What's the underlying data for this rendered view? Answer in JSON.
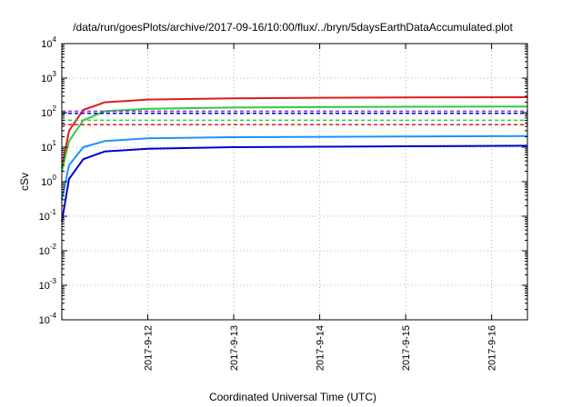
{
  "chart_data": {
    "type": "line",
    "title": "/data/run/goesPlots/archive/2017-09-16/10:00/flux/../bryn/5daysEarthDataAccumulated.plot",
    "xlabel": "Coordinated Universal Time (UTC)",
    "ylabel": "cSv",
    "y_scale": "log",
    "ylim": [
      0.0001,
      10000
    ],
    "xlim": [
      "2017-09-11 00:00",
      "2017-09-16 10:00"
    ],
    "x_ticks": [
      "2017-9-12",
      "2017-9-13",
      "2017-9-14",
      "2017-9-15",
      "2017-9-16"
    ],
    "y_ticks": [
      {
        "base": "10",
        "exp": "-4"
      },
      {
        "base": "10",
        "exp": "-3"
      },
      {
        "base": "10",
        "exp": "-2"
      },
      {
        "base": "10",
        "exp": "-1"
      },
      {
        "base": "10",
        "exp": "0"
      },
      {
        "base": "10",
        "exp": "1"
      },
      {
        "base": "10",
        "exp": "2"
      },
      {
        "base": "10",
        "exp": "3"
      },
      {
        "base": "10",
        "exp": "4"
      }
    ],
    "grid": true,
    "series": [
      {
        "color": "#e31a1c",
        "style": "solid",
        "x": [
          "2017-09-11 00:00",
          "2017-09-11 02:00",
          "2017-09-11 06:00",
          "2017-09-11 12:00",
          "2017-09-12 00:00",
          "2017-09-13 00:00",
          "2017-09-14 00:00",
          "2017-09-15 00:00",
          "2017-09-16 10:00"
        ],
        "values": [
          2.5,
          30,
          120,
          200,
          240,
          260,
          270,
          275,
          280
        ]
      },
      {
        "color": "#2ecc40",
        "style": "solid",
        "x": [
          "2017-09-11 00:00",
          "2017-09-11 02:00",
          "2017-09-11 06:00",
          "2017-09-11 12:00",
          "2017-09-12 00:00",
          "2017-09-13 00:00",
          "2017-09-14 00:00",
          "2017-09-15 00:00",
          "2017-09-16 10:00"
        ],
        "values": [
          2,
          15,
          60,
          110,
          130,
          140,
          145,
          148,
          150
        ]
      },
      {
        "color": "#1e90ff",
        "style": "solid",
        "x": [
          "2017-09-11 00:00",
          "2017-09-11 02:00",
          "2017-09-11 06:00",
          "2017-09-11 12:00",
          "2017-09-12 00:00",
          "2017-09-13 00:00",
          "2017-09-14 00:00",
          "2017-09-15 00:00",
          "2017-09-16 10:00"
        ],
        "values": [
          0.3,
          3,
          10,
          15,
          18,
          19.5,
          20,
          20.5,
          21
        ]
      },
      {
        "color": "#0000cd",
        "style": "solid",
        "x": [
          "2017-09-11 00:00",
          "2017-09-11 02:00",
          "2017-09-11 06:00",
          "2017-09-11 12:00",
          "2017-09-12 00:00",
          "2017-09-13 00:00",
          "2017-09-14 00:00",
          "2017-09-15 00:00",
          "2017-09-16 10:00"
        ],
        "values": [
          0.07,
          1.2,
          4.5,
          7.5,
          9,
          10,
          10.3,
          10.6,
          11
        ]
      },
      {
        "color": "#8a2be2",
        "style": "dashed",
        "x": [
          "2017-09-11 00:00",
          "2017-09-16 10:00"
        ],
        "values": [
          110,
          110
        ]
      },
      {
        "color": "#0000cd",
        "style": "dashed",
        "x": [
          "2017-09-11 00:00",
          "2017-09-16 10:00"
        ],
        "values": [
          95,
          95
        ]
      },
      {
        "color": "#2ecc40",
        "style": "dashed",
        "x": [
          "2017-09-11 00:00",
          "2017-09-16 10:00"
        ],
        "values": [
          60,
          60
        ]
      },
      {
        "color": "#e31a1c",
        "style": "dashed",
        "x": [
          "2017-09-11 00:00",
          "2017-09-16 10:00"
        ],
        "values": [
          45,
          45
        ]
      }
    ]
  }
}
